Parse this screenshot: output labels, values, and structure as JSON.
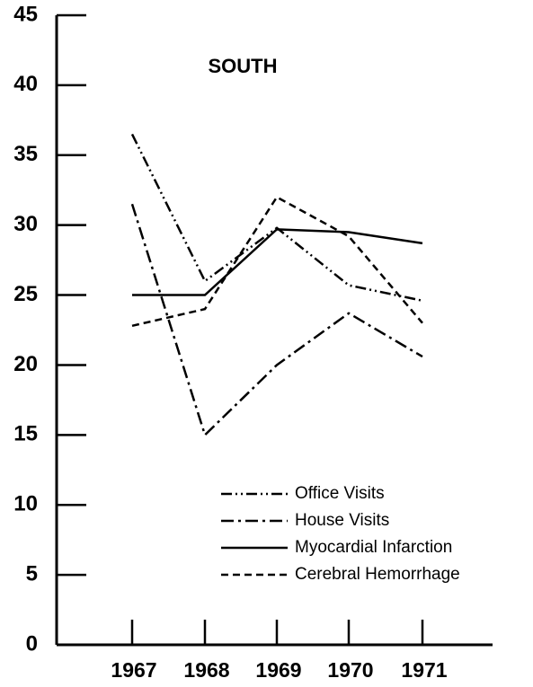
{
  "chart_data": {
    "type": "line",
    "title": "SOUTH",
    "categories": [
      "1967",
      "1968",
      "1969",
      "1970",
      "1971"
    ],
    "series": [
      {
        "name": "Office Visits",
        "color": "#000000",
        "dash": "12,4,2,4,2,4",
        "values": [
          36.5,
          26,
          29.8,
          25.7,
          24.6
        ]
      },
      {
        "name": "House Visits",
        "color": "#000000",
        "dash": "14,5,3,5",
        "values": [
          31.5,
          15,
          20,
          23.7,
          20.6
        ]
      },
      {
        "name": "Myocardial Infarction",
        "color": "#000000",
        "dash": "none",
        "values": [
          25,
          25,
          29.7,
          29.5,
          28.7
        ]
      },
      {
        "name": "Cerebral Hemorrhage",
        "color": "#000000",
        "dash": "8,5",
        "values": [
          22.8,
          24,
          32,
          29.2,
          23
        ]
      }
    ],
    "ylim": [
      0,
      45
    ],
    "yticks": [
      0,
      5,
      10,
      15,
      20,
      25,
      30,
      35,
      40,
      45
    ]
  }
}
